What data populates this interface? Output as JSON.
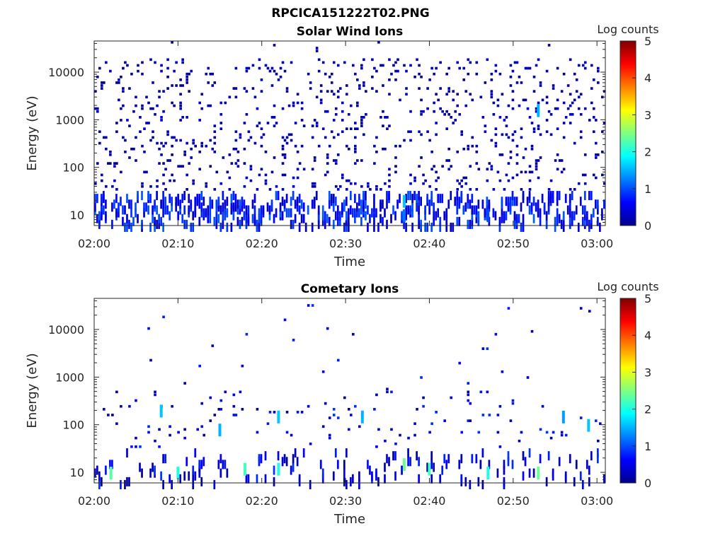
{
  "figure_title": "RPCICA151222T02.PNG",
  "colorbar_colors": [
    "#00008f",
    "#0000ff",
    "#0080ff",
    "#00ffff",
    "#80ff80",
    "#ffff00",
    "#ff8000",
    "#ff0000",
    "#800000"
  ],
  "chart_data": [
    {
      "type": "heatmap",
      "title": "Solar Wind Ions",
      "xlabel": "Time",
      "ylabel": "Energy (eV)",
      "x_ticks": [
        "02:00",
        "02:10",
        "02:20",
        "02:30",
        "02:40",
        "02:50",
        "03:00"
      ],
      "x_range": [
        "02:00",
        "03:01"
      ],
      "y_scale": "log",
      "y_ticks": [
        "10",
        "100",
        "1000",
        "10000"
      ],
      "y_range": [
        6,
        45000
      ],
      "colorbar": {
        "label": "Log counts",
        "ticks": [
          "0",
          "1",
          "2",
          "3",
          "4",
          "5"
        ],
        "range": [
          0,
          5
        ]
      },
      "grid": false,
      "description_of_values": "Sparse scattered low counts (~0-0.5 log counts) across 10 eV-20 keV; stronger columns (~0.5-1.5) near 6-30 eV",
      "hotspots": [
        {
          "time": "02:37",
          "energy": 20,
          "value": 1.6
        },
        {
          "time": "02:53",
          "energy": 1600,
          "value": 1.5
        },
        {
          "time": "02:37",
          "energy": 10,
          "value": 1.2
        },
        {
          "time": "02:47",
          "energy": 10,
          "value": 1.0
        }
      ]
    },
    {
      "type": "heatmap",
      "title": "Cometary Ions",
      "xlabel": "Time",
      "ylabel": "Energy (eV)",
      "x_ticks": [
        "02:00",
        "02:10",
        "02:20",
        "02:30",
        "02:40",
        "02:50",
        "03:00"
      ],
      "x_range": [
        "02:00",
        "03:01"
      ],
      "y_scale": "log",
      "y_ticks": [
        "10",
        "100",
        "1000",
        "10000"
      ],
      "y_range": [
        6,
        45000
      ],
      "colorbar": {
        "label": "Log counts",
        "ticks": [
          "0",
          "1",
          "2",
          "3",
          "4",
          "5"
        ],
        "range": [
          0,
          5
        ]
      },
      "grid": false,
      "description_of_values": "Bursts of counts below ~500 eV; strongest (~1.5-2.5 log counts) at 6-25 eV",
      "hotspots": [
        {
          "time": "02:02",
          "energy": 10,
          "value": 2.3
        },
        {
          "time": "02:18",
          "energy": 12,
          "value": 2.2
        },
        {
          "time": "02:22",
          "energy": 12,
          "value": 2.0
        },
        {
          "time": "02:37",
          "energy": 15,
          "value": 2.4
        },
        {
          "time": "02:40",
          "energy": 12,
          "value": 2.2
        },
        {
          "time": "02:47",
          "energy": 10,
          "value": 2.0
        },
        {
          "time": "02:53",
          "energy": 10,
          "value": 2.4
        },
        {
          "time": "02:10",
          "energy": 10,
          "value": 2.0
        },
        {
          "time": "02:15",
          "energy": 80,
          "value": 1.5
        },
        {
          "time": "02:22",
          "energy": 150,
          "value": 1.6
        },
        {
          "time": "02:32",
          "energy": 150,
          "value": 1.5
        },
        {
          "time": "02:08",
          "energy": 200,
          "value": 1.6
        },
        {
          "time": "02:56",
          "energy": 150,
          "value": 1.4
        },
        {
          "time": "02:59",
          "energy": 100,
          "value": 1.6
        }
      ]
    }
  ]
}
